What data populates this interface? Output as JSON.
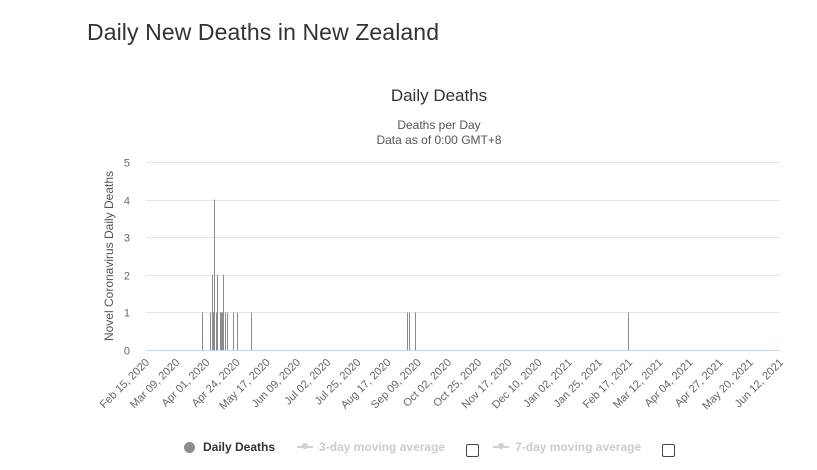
{
  "page": {
    "title": "Daily New Deaths in New Zealand"
  },
  "chart_data": {
    "type": "bar",
    "title": "Daily Deaths",
    "subtitle_lines": [
      "Deaths per Day",
      "Data as of 0:00 GMT+8"
    ],
    "ylabel": "Novel Coronavirus Daily Deaths",
    "xlabel": "",
    "ylim": [
      0,
      5
    ],
    "yticks": [
      0,
      1,
      2,
      3,
      4,
      5
    ],
    "grid": true,
    "x_start": "2020-02-15",
    "x_end": "2021-06-12",
    "x_tick_labels": [
      "Feb 15, 2020",
      "Mar 09, 2020",
      "Apr 01, 2020",
      "Apr 24, 2020",
      "May 17, 2020",
      "Jun 09, 2020",
      "Jul 02, 2020",
      "Jul 25, 2020",
      "Aug 17, 2020",
      "Sep 09, 2020",
      "Oct 02, 2020",
      "Oct 25, 2020",
      "Nov 17, 2020",
      "Dec 10, 2020",
      "Jan 02, 2021",
      "Jan 25, 2021",
      "Feb 17, 2021",
      "Mar 12, 2021",
      "Apr 04, 2021",
      "Apr 27, 2021",
      "May 20, 2021",
      "Jun 12, 2021"
    ],
    "bar_color": "#8c8c8c",
    "series": [
      {
        "name": "Daily Deaths",
        "points": [
          [
            "2020-03-29",
            1
          ],
          [
            "2020-04-04",
            1
          ],
          [
            "2020-04-05",
            2
          ],
          [
            "2020-04-06",
            1
          ],
          [
            "2020-04-07",
            4
          ],
          [
            "2020-04-08",
            1
          ],
          [
            "2020-04-09",
            2
          ],
          [
            "2020-04-11",
            1
          ],
          [
            "2020-04-12",
            1
          ],
          [
            "2020-04-13",
            1
          ],
          [
            "2020-04-14",
            2
          ],
          [
            "2020-04-15",
            1
          ],
          [
            "2020-04-17",
            1
          ],
          [
            "2020-04-21",
            1
          ],
          [
            "2020-04-24",
            1
          ],
          [
            "2020-05-05",
            1
          ],
          [
            "2020-09-01",
            1
          ],
          [
            "2020-09-02",
            1
          ],
          [
            "2020-09-07",
            1
          ],
          [
            "2021-02-16",
            1
          ]
        ]
      }
    ]
  },
  "legend": {
    "items": [
      {
        "label": "Daily Deaths",
        "active": true
      },
      {
        "label": "3-day moving average",
        "active": false,
        "checked": false
      },
      {
        "label": "7-day moving average",
        "active": false,
        "checked": false
      }
    ]
  }
}
